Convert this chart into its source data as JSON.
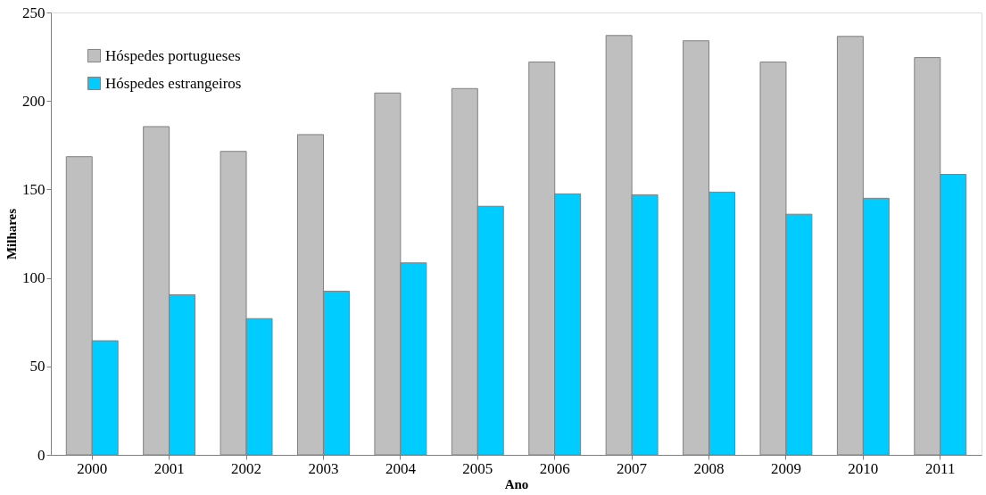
{
  "chart_data": {
    "type": "bar",
    "xlabel": "Ano",
    "ylabel": "Milhares",
    "categories": [
      "2000",
      "2001",
      "2002",
      "2003",
      "2004",
      "2005",
      "2006",
      "2007",
      "2008",
      "2009",
      "2010",
      "2011"
    ],
    "series": [
      {
        "name": "Hóspedes portugueses",
        "color": "#bfbfbf",
        "values": [
          168.5,
          185.5,
          171.5,
          181,
          204.5,
          207,
          222,
          237,
          234,
          222,
          236.5,
          224.5
        ]
      },
      {
        "name": "Hóspedes estrangeiros",
        "color": "#00ccff",
        "values": [
          64.5,
          90.5,
          77,
          92.5,
          108.5,
          140.5,
          147.5,
          147,
          148.5,
          136,
          145,
          158.5
        ]
      }
    ],
    "ylim": [
      0,
      250
    ],
    "yticks": [
      0,
      50,
      100,
      150,
      200,
      250
    ],
    "grid": false,
    "legend": "top left"
  }
}
